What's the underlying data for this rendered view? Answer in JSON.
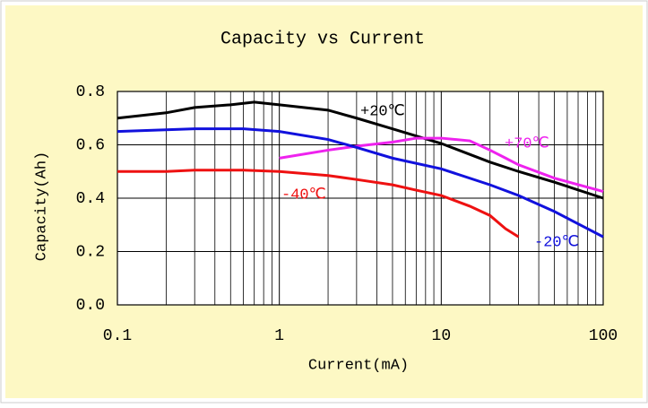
{
  "chart_data": {
    "type": "line",
    "title": "Capacity vs Current",
    "x_label": "Current(mA)",
    "y_label": "Capacity(Ah)",
    "xlim": [
      0.1,
      100
    ],
    "xticks": [
      0.1,
      1,
      10,
      100
    ],
    "xscale": "log",
    "xminorticks": [
      0.2,
      0.3,
      0.4,
      0.5,
      0.6,
      0.7,
      0.8,
      0.9,
      2,
      3,
      4,
      5,
      6,
      7,
      8,
      9,
      20,
      30,
      40,
      50,
      60,
      70,
      80,
      90
    ],
    "ylim": [
      0,
      0.8
    ],
    "yticks": [
      {
        "value": 0,
        "label": "0.0"
      },
      0.2,
      0.4,
      0.6,
      0.8
    ],
    "grid": true,
    "series": [
      {
        "name": "+20℃",
        "color": "#000000",
        "x": [
          0.1,
          0.2,
          0.3,
          0.5,
          0.7,
          1,
          2,
          3,
          5,
          10,
          20,
          30,
          50,
          100
        ],
        "values": [
          0.7,
          0.72,
          0.74,
          0.75,
          0.76,
          0.75,
          0.73,
          0.7,
          0.66,
          0.605,
          0.535,
          0.5,
          0.46,
          0.4
        ]
      },
      {
        "name": "+70℃",
        "color": "#ee22ee",
        "x": [
          1,
          2,
          3,
          5,
          7,
          10,
          15,
          20,
          25,
          30,
          50,
          100
        ],
        "values": [
          0.55,
          0.58,
          0.595,
          0.61,
          0.625,
          0.625,
          0.615,
          0.58,
          0.55,
          0.525,
          0.475,
          0.425
        ]
      },
      {
        "name": "-40℃",
        "color": "#ee1111",
        "x": [
          0.1,
          0.2,
          0.3,
          0.6,
          1,
          2,
          3,
          5,
          7,
          10,
          15,
          20,
          25,
          30
        ],
        "values": [
          0.5,
          0.5,
          0.505,
          0.505,
          0.5,
          0.485,
          0.47,
          0.45,
          0.43,
          0.41,
          0.37,
          0.335,
          0.285,
          0.255
        ]
      },
      {
        "name": "-20℃",
        "color": "#1111dd",
        "x": [
          0.1,
          0.3,
          0.6,
          1,
          2,
          3,
          5,
          10,
          20,
          30,
          50,
          100
        ],
        "values": [
          0.65,
          0.66,
          0.66,
          0.65,
          0.62,
          0.59,
          0.55,
          0.51,
          0.45,
          0.41,
          0.35,
          0.255
        ]
      }
    ]
  }
}
